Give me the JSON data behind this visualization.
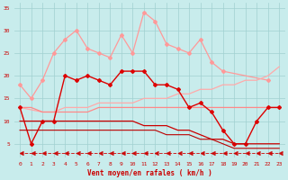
{
  "xlabel": "Vent moyen/en rafales ( km/h )",
  "xlim": [
    -0.5,
    23.5
  ],
  "ylim": [
    2,
    36
  ],
  "yticks": [
    5,
    10,
    15,
    20,
    25,
    30,
    35
  ],
  "xticks": [
    0,
    1,
    2,
    3,
    4,
    5,
    6,
    7,
    8,
    9,
    10,
    11,
    12,
    13,
    14,
    15,
    16,
    17,
    18,
    19,
    20,
    21,
    22,
    23
  ],
  "bg_color": "#c8ecec",
  "grid_color": "#a0d0d0",
  "series": [
    {
      "x": [
        0,
        1,
        2,
        3,
        4,
        5,
        6,
        7,
        8,
        9,
        10,
        11,
        12,
        13,
        14,
        15,
        16,
        17,
        18,
        22
      ],
      "y": [
        18,
        15,
        19,
        25,
        28,
        30,
        26,
        25,
        24,
        29,
        25,
        34,
        32,
        27,
        26,
        25,
        28,
        23,
        21,
        19
      ],
      "color": "#ff9999",
      "lw": 0.9,
      "marker": "D",
      "ms": 2.0
    },
    {
      "x": [
        0,
        2,
        3,
        4,
        5,
        6,
        7,
        8,
        9,
        10,
        11,
        12,
        13,
        14,
        15,
        16,
        17,
        18,
        19,
        20,
        21,
        22,
        23
      ],
      "y": [
        13,
        12,
        12,
        13,
        13,
        13,
        14,
        14,
        14,
        14,
        15,
        15,
        15,
        16,
        16,
        17,
        17,
        18,
        18,
        19,
        19,
        20,
        22
      ],
      "color": "#ffaaaa",
      "lw": 0.9,
      "marker": null,
      "ms": 2.0
    },
    {
      "x": [
        0,
        1,
        2,
        3,
        4,
        5,
        6,
        7,
        8,
        9,
        10,
        11,
        12,
        13,
        14,
        15,
        16,
        17,
        18,
        19,
        20,
        21,
        22,
        23
      ],
      "y": [
        13,
        13,
        12,
        12,
        12,
        12,
        12,
        13,
        13,
        13,
        13,
        13,
        13,
        13,
        13,
        13,
        13,
        13,
        13,
        13,
        13,
        13,
        13,
        13
      ],
      "color": "#ff8888",
      "lw": 0.9,
      "marker": null,
      "ms": 2.0
    },
    {
      "x": [
        0,
        1,
        2,
        3,
        4,
        5,
        6,
        7,
        8,
        9,
        10,
        11,
        12,
        13,
        14,
        15,
        16,
        17,
        18,
        19,
        20,
        21,
        22,
        23
      ],
      "y": [
        13,
        5,
        10,
        10,
        20,
        19,
        20,
        19,
        18,
        21,
        21,
        21,
        18,
        18,
        17,
        13,
        14,
        12,
        8,
        5,
        5,
        10,
        13,
        13
      ],
      "color": "#dd0000",
      "lw": 1.0,
      "marker": "D",
      "ms": 2.0
    },
    {
      "x": [
        0,
        1,
        2,
        3,
        4,
        5,
        6,
        7,
        8,
        9,
        10,
        11,
        12,
        13,
        14,
        15,
        16,
        17,
        18,
        19,
        20,
        21,
        22,
        23
      ],
      "y": [
        10,
        10,
        10,
        10,
        10,
        10,
        10,
        10,
        10,
        10,
        10,
        9,
        9,
        9,
        8,
        8,
        7,
        6,
        6,
        5,
        5,
        5,
        5,
        5
      ],
      "color": "#cc0000",
      "lw": 0.9,
      "marker": null,
      "ms": 2.0
    },
    {
      "x": [
        0,
        1,
        2,
        3,
        4,
        5,
        6,
        7,
        8,
        9,
        10,
        11,
        12,
        13,
        14,
        15,
        16,
        17,
        18,
        19,
        20,
        21,
        22,
        23
      ],
      "y": [
        8,
        8,
        8,
        8,
        8,
        8,
        8,
        8,
        8,
        8,
        8,
        8,
        8,
        7,
        7,
        7,
        6,
        6,
        5,
        4,
        4,
        4,
        4,
        4
      ],
      "color": "#bb0000",
      "lw": 0.8,
      "marker": null,
      "ms": 2.0
    },
    {
      "x": [
        0,
        1,
        2,
        3,
        4,
        5,
        6,
        7,
        8,
        9,
        10,
        11,
        12,
        13,
        14,
        15,
        16,
        17,
        18,
        19,
        20,
        21,
        22,
        23
      ],
      "y": [
        3,
        3,
        3,
        3,
        3,
        3,
        3,
        3,
        3,
        3,
        3,
        3,
        3,
        3,
        3,
        3,
        3,
        3,
        3,
        3,
        3,
        3,
        3,
        3
      ],
      "color": "#cc0000",
      "lw": 0.7,
      "marker": 4,
      "ms": 3.5,
      "linestyle": "--",
      "alpha": 0.85
    }
  ]
}
